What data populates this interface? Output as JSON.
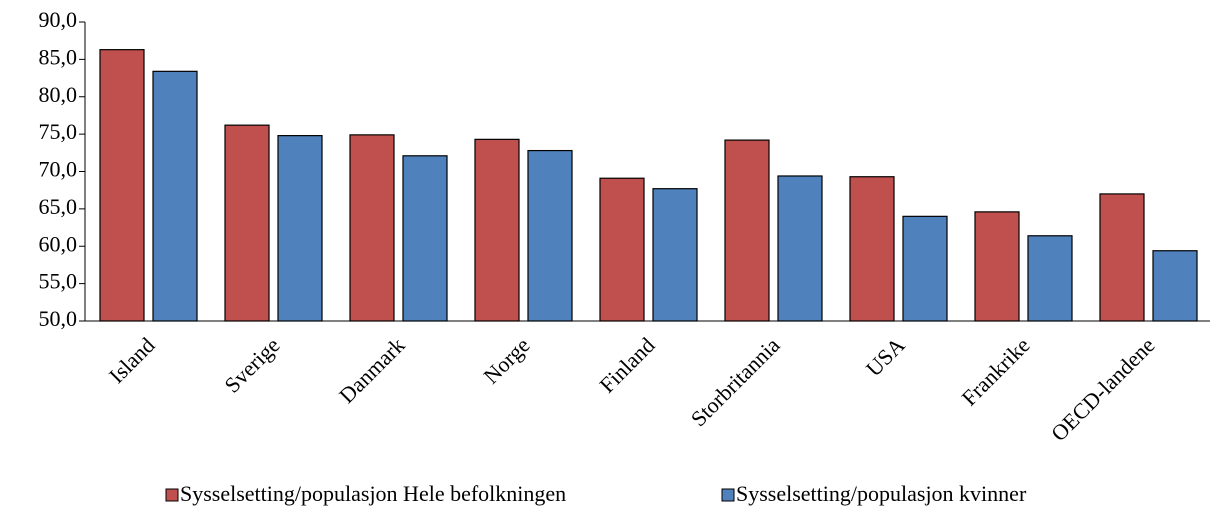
{
  "chart_data": {
    "type": "bar",
    "categories": [
      "Island",
      "Sverige",
      "Danmark",
      "Norge",
      "Finland",
      "Storbritannia",
      "USA",
      "Frankrike",
      "OECD-landene"
    ],
    "series": [
      {
        "name": "Sysselsetting/populasjon Hele befolkningen",
        "color": "#c0504d",
        "values": [
          86.3,
          76.2,
          74.9,
          74.3,
          69.1,
          74.2,
          69.3,
          64.6,
          67.0
        ]
      },
      {
        "name": "Sysselsetting/populasjon kvinner",
        "color": "#4f81bd",
        "values": [
          83.4,
          74.8,
          72.1,
          72.8,
          67.7,
          69.4,
          64.0,
          61.4,
          59.4
        ]
      }
    ],
    "ylim": [
      50,
      90
    ],
    "yticks": [
      {
        "value": 50,
        "label": "50,0"
      },
      {
        "value": 55,
        "label": "55,0"
      },
      {
        "value": 60,
        "label": "60,0"
      },
      {
        "value": 65,
        "label": "65,0"
      },
      {
        "value": 70,
        "label": "70,0"
      },
      {
        "value": 75,
        "label": "75,0"
      },
      {
        "value": 80,
        "label": "80,0"
      },
      {
        "value": 85,
        "label": "85,0"
      },
      {
        "value": 90,
        "label": "90,0"
      }
    ],
    "grid": false,
    "legend": "bottom"
  }
}
